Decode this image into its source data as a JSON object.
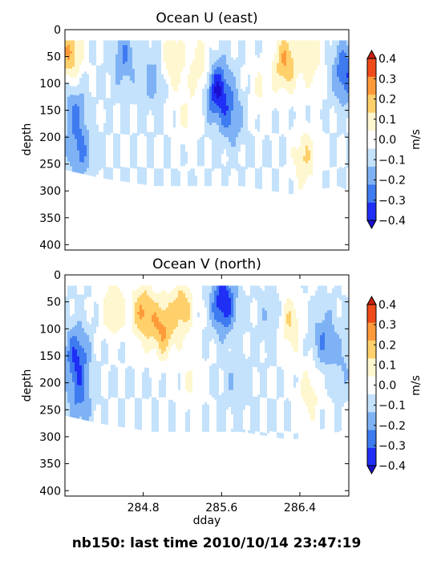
{
  "figure": {
    "suptitle": "nb150: last time 2010/10/14 23:47:19"
  },
  "colormap": {
    "levels": [
      -0.4,
      -0.3,
      -0.2,
      -0.1,
      0.0,
      0.1,
      0.2,
      0.3,
      0.4
    ],
    "colors": [
      "#1f2ff5",
      "#3f7bf0",
      "#7fb2f5",
      "#c4e2fb",
      "#ffffff",
      "#fff7cf",
      "#ffd06b",
      "#ff9a3a",
      "#ef4a1a"
    ],
    "under_color": "#1a0fd0",
    "over_color": "#c81e0f"
  },
  "chart_data": [
    {
      "type": "heatmap",
      "title": "Ocean U (east)",
      "ylabel": "depth",
      "xlabel": "",
      "colorbar_label": "m/s",
      "xlim": [
        284.0,
        286.9
      ],
      "ylim": [
        410,
        0
      ],
      "xticks": [],
      "yticks": [
        0,
        50,
        100,
        150,
        200,
        250,
        300,
        350,
        400
      ],
      "colorbar_ticks": [
        "0.4",
        "0.3",
        "0.2",
        "0.1",
        "0.0",
        "−0.1",
        "−0.2",
        "−0.3",
        "−0.4"
      ],
      "depth_top": 20,
      "depth_bottom_by_time": [
        [
          284.0,
          260
        ],
        [
          284.36,
          275
        ],
        [
          284.9,
          290
        ],
        [
          285.8,
          290
        ],
        [
          286.3,
          305
        ],
        [
          286.8,
          290
        ],
        [
          286.9,
          300
        ]
      ],
      "features": [
        {
          "time": 284.05,
          "depth": 45,
          "value": 0.3
        },
        {
          "time": 284.1,
          "depth": 150,
          "value": -0.2
        },
        {
          "time": 284.15,
          "depth": 230,
          "value": -0.2
        },
        {
          "time": 284.6,
          "depth": 50,
          "value": -0.2
        },
        {
          "time": 284.9,
          "depth": 90,
          "value": -0.15
        },
        {
          "time": 285.1,
          "depth": 55,
          "value": 0.2
        },
        {
          "time": 285.25,
          "depth": 160,
          "value": 0.1
        },
        {
          "time": 285.4,
          "depth": 70,
          "value": 0.2
        },
        {
          "time": 285.55,
          "depth": 110,
          "value": -0.4
        },
        {
          "time": 285.7,
          "depth": 160,
          "value": -0.2
        },
        {
          "time": 286.0,
          "depth": 110,
          "value": 0.1
        },
        {
          "time": 286.25,
          "depth": 60,
          "value": 0.3
        },
        {
          "time": 286.45,
          "depth": 240,
          "value": 0.2
        },
        {
          "time": 286.5,
          "depth": 50,
          "value": 0.2
        },
        {
          "time": 286.86,
          "depth": 80,
          "value": -0.3
        }
      ]
    },
    {
      "type": "heatmap",
      "title": "Ocean V (north)",
      "ylabel": "depth",
      "xlabel": "dday",
      "colorbar_label": "m/s",
      "xlim": [
        284.0,
        286.9
      ],
      "ylim": [
        410,
        0
      ],
      "xticks": [
        "284.8",
        "285.6",
        "286.4"
      ],
      "xtick_values": [
        284.8,
        285.6,
        286.4
      ],
      "yticks": [
        0,
        50,
        100,
        150,
        200,
        250,
        300,
        350,
        400
      ],
      "colorbar_ticks": [
        "0.4",
        "0.3",
        "0.2",
        "0.1",
        "0.0",
        "−0.1",
        "−0.2",
        "−0.3",
        "−0.4"
      ],
      "depth_top": 20,
      "depth_bottom_by_time": [
        [
          284.0,
          260
        ],
        [
          284.36,
          275
        ],
        [
          284.9,
          290
        ],
        [
          285.8,
          290
        ],
        [
          286.3,
          305
        ],
        [
          286.8,
          290
        ],
        [
          286.9,
          275
        ]
      ],
      "features": [
        {
          "time": 284.12,
          "depth": 150,
          "value": -0.3
        },
        {
          "time": 284.15,
          "depth": 230,
          "value": -0.2
        },
        {
          "time": 284.5,
          "depth": 60,
          "value": 0.2
        },
        {
          "time": 284.8,
          "depth": 70,
          "value": 0.3
        },
        {
          "time": 285.0,
          "depth": 100,
          "value": 0.3
        },
        {
          "time": 285.2,
          "depth": 60,
          "value": 0.25
        },
        {
          "time": 285.3,
          "depth": 200,
          "value": 0.1
        },
        {
          "time": 285.62,
          "depth": 50,
          "value": -0.4
        },
        {
          "time": 285.75,
          "depth": 200,
          "value": -0.1
        },
        {
          "time": 286.1,
          "depth": 80,
          "value": -0.1
        },
        {
          "time": 286.3,
          "depth": 90,
          "value": 0.2
        },
        {
          "time": 286.5,
          "depth": 220,
          "value": 0.15
        },
        {
          "time": 286.65,
          "depth": 120,
          "value": -0.2
        },
        {
          "time": 286.85,
          "depth": 160,
          "value": -0.1
        }
      ]
    }
  ]
}
